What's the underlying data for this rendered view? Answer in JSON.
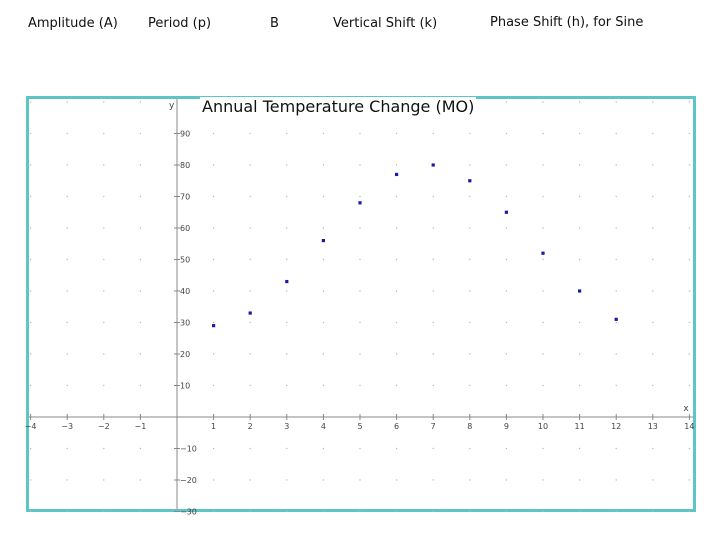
{
  "header": {
    "amplitude": "Amplitude (A)",
    "period": "Period (p)",
    "b": "B",
    "vertical_shift": "Vertical Shift (k)",
    "phase_shift": "Phase Shift (h), for Sine"
  },
  "chart_data": {
    "type": "scatter",
    "title": "Annual Temperature Change (MO)",
    "xlabel": "x",
    "ylabel": "y",
    "xlim": [
      -4,
      14
    ],
    "ylim": [
      -30,
      100
    ],
    "x_ticks": [
      -4,
      -3,
      -2,
      -1,
      1,
      2,
      3,
      4,
      5,
      6,
      7,
      8,
      9,
      10,
      11,
      12,
      13,
      14
    ],
    "y_ticks": [
      -30,
      -20,
      -10,
      10,
      20,
      30,
      40,
      50,
      60,
      70,
      80,
      90
    ],
    "grid": true,
    "point_color": "#1a1aa6",
    "frame_color": "#5ec4c4",
    "series": [
      {
        "x": [
          1,
          2,
          3,
          4,
          5,
          6,
          7,
          8,
          9,
          10,
          11,
          12
        ],
        "y": [
          29,
          33,
          43,
          56,
          68,
          77,
          80,
          75,
          65,
          52,
          40,
          31
        ]
      }
    ]
  }
}
